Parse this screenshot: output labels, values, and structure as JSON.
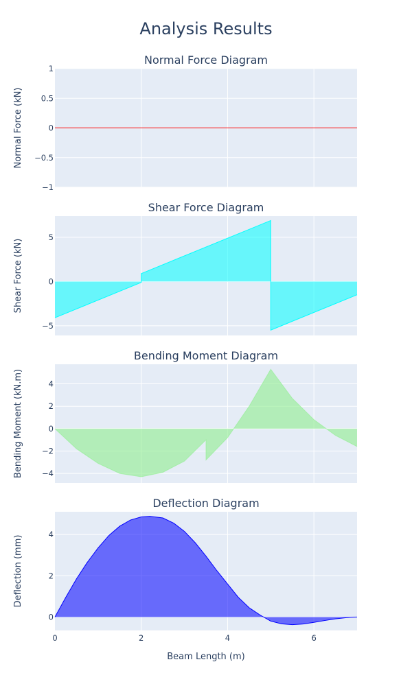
{
  "figure": {
    "title": "Analysis Results",
    "xlabel": "Beam Length (m)"
  },
  "colors": {
    "plot_bg": "#e5ecf6",
    "grid": "#ffffff",
    "text": "#2a3f5f"
  },
  "chart_data": [
    {
      "type": "line",
      "title": "Normal Force Diagram",
      "xlabel": "",
      "ylabel": "Normal Force (kN)",
      "xlim": [
        0,
        7
      ],
      "ylim": [
        -1,
        1
      ],
      "yticks": [
        1,
        0.5,
        0,
        -0.5,
        -1
      ],
      "ytick_labels": [
        "1",
        "0.5",
        "0",
        "−0.5",
        "−1"
      ],
      "xgrid": [
        2,
        4,
        6
      ],
      "grid": true,
      "series": [
        {
          "line_color": "#ff0000",
          "fill_color": "none",
          "x": [
            0,
            7
          ],
          "y": [
            0,
            0
          ]
        }
      ]
    },
    {
      "type": "area",
      "title": "Shear Force Diagram",
      "xlabel": "",
      "ylabel": "Shear Force (kN)",
      "xlim": [
        0,
        7
      ],
      "ylim": [
        -6.1,
        7.4
      ],
      "yticks": [
        5,
        0,
        -5
      ],
      "ytick_labels": [
        "5",
        "0",
        "−5"
      ],
      "xgrid": [
        2,
        4,
        6
      ],
      "grid": true,
      "series": [
        {
          "line_color": "#00ffff",
          "fill_color": "rgba(0,255,255,0.55)",
          "x": [
            0,
            2,
            2,
            2,
            5,
            5,
            5,
            7
          ],
          "y": [
            -4.1,
            -0.1,
            0,
            0.9,
            6.9,
            0,
            -5.5,
            -1.5
          ]
        }
      ]
    },
    {
      "type": "area",
      "title": "Bending Moment Diagram",
      "xlabel": "",
      "ylabel": "Bending Moment (kN.m)",
      "xlim": [
        0,
        7
      ],
      "ylim": [
        -4.85,
        5.75
      ],
      "yticks": [
        4,
        2,
        0,
        -2,
        -4
      ],
      "ytick_labels": [
        "4",
        "2",
        "0",
        "−2",
        "−4"
      ],
      "xgrid": [
        2,
        4,
        6
      ],
      "grid": true,
      "series": [
        {
          "line_color": "rgba(144,238,144,0.6)",
          "fill_color": "rgba(144,238,144,0.6)",
          "x": [
            0,
            0.5,
            1,
            1.5,
            2,
            2.5,
            3,
            3.5,
            3.5,
            4,
            4.5,
            5,
            5.5,
            6,
            6.5,
            7
          ],
          "y": [
            0,
            -1.8,
            -3.1,
            -4.0,
            -4.3,
            -3.9,
            -2.9,
            -1.0,
            -2.8,
            -0.8,
            2.0,
            5.3,
            2.7,
            0.8,
            -0.6,
            -1.6
          ]
        }
      ]
    },
    {
      "type": "area",
      "title": "Deflection Diagram",
      "xlabel": "Beam Length (m)",
      "ylabel": "Deflection (mm)",
      "xlim": [
        0,
        7
      ],
      "ylim": [
        -0.65,
        5.1
      ],
      "yticks": [
        4,
        2,
        0
      ],
      "ytick_labels": [
        "4",
        "2",
        "0"
      ],
      "xticks": [
        0,
        2,
        4,
        6
      ],
      "xtick_labels": [
        "0",
        "2",
        "4",
        "6"
      ],
      "xgrid": [
        2,
        4,
        6
      ],
      "grid": true,
      "series": [
        {
          "line_color": "#0000ff",
          "fill_color": "rgba(0,0,255,0.55)",
          "x": [
            0,
            0.25,
            0.5,
            0.75,
            1,
            1.25,
            1.5,
            1.75,
            2,
            2.2,
            2.5,
            2.75,
            3,
            3.25,
            3.5,
            3.75,
            4,
            4.25,
            4.5,
            4.75,
            5,
            5.25,
            5.5,
            5.75,
            6,
            6.25,
            6.5,
            6.75,
            7
          ],
          "y": [
            0,
            0.95,
            1.85,
            2.65,
            3.35,
            3.95,
            4.4,
            4.7,
            4.85,
            4.88,
            4.8,
            4.55,
            4.15,
            3.6,
            2.95,
            2.25,
            1.6,
            0.95,
            0.45,
            0.1,
            -0.2,
            -0.33,
            -0.37,
            -0.34,
            -0.26,
            -0.17,
            -0.09,
            -0.03,
            0
          ]
        }
      ]
    }
  ]
}
